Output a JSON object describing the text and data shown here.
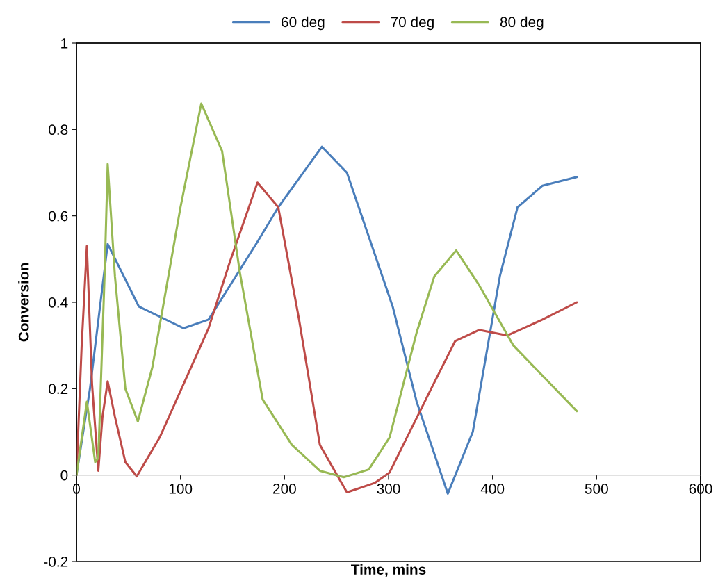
{
  "chart_data": {
    "type": "line",
    "xlabel": "Time, mins",
    "ylabel": "Conversion",
    "xlim": [
      0,
      600
    ],
    "ylim": [
      -0.2,
      1
    ],
    "xticks": [
      0,
      100,
      200,
      300,
      400,
      500,
      600
    ],
    "yticks": [
      {
        "value": -0.2,
        "label": "-0.2"
      },
      0,
      0.2,
      0.4,
      0.6,
      0.8,
      1
    ],
    "legend": "top",
    "grid": false,
    "marker": "none",
    "line_style": "solid",
    "series": [
      {
        "name": "60 deg",
        "color": "#4a7ebb",
        "x": [
          0,
          13,
          30,
          60,
          103,
          127,
          174,
          194,
          236,
          260,
          304,
          327,
          357,
          381,
          407,
          424,
          448,
          481
        ],
        "values": [
          0,
          0.2,
          0.535,
          0.39,
          0.34,
          0.36,
          0.54,
          0.62,
          0.76,
          0.7,
          0.39,
          0.17,
          -0.043,
          0.1,
          0.46,
          0.62,
          0.67,
          0.69
        ]
      },
      {
        "name": "70 deg",
        "color": "#be4b48",
        "x": [
          0,
          5,
          10,
          15,
          21,
          25,
          30,
          37,
          47,
          58,
          80,
          127,
          147,
          174,
          194,
          214,
          234,
          260,
          287,
          301,
          341,
          364,
          387,
          414,
          448,
          481
        ],
        "values": [
          0,
          0.3,
          0.53,
          0.21,
          0.01,
          0.135,
          0.217,
          0.135,
          0.03,
          -0.003,
          0.087,
          0.34,
          0.49,
          0.677,
          0.62,
          0.36,
          0.07,
          -0.04,
          -0.018,
          0.006,
          0.2,
          0.31,
          0.336,
          0.323,
          0.36,
          0.4
        ]
      },
      {
        "name": "80 deg",
        "color": "#98b954",
        "x": [
          0,
          10,
          18,
          21,
          27,
          30,
          37,
          47,
          59,
          73,
          100,
          120,
          140,
          157,
          179,
          207,
          234,
          257,
          281,
          301,
          327,
          344,
          365,
          387,
          420,
          448,
          481
        ],
        "values": [
          0,
          0.17,
          0.03,
          0.04,
          0.46,
          0.72,
          0.46,
          0.2,
          0.124,
          0.25,
          0.62,
          0.86,
          0.75,
          0.47,
          0.175,
          0.07,
          0.01,
          -0.005,
          0.013,
          0.087,
          0.33,
          0.46,
          0.52,
          0.44,
          0.3,
          0.23,
          0.148
        ]
      }
    ]
  }
}
